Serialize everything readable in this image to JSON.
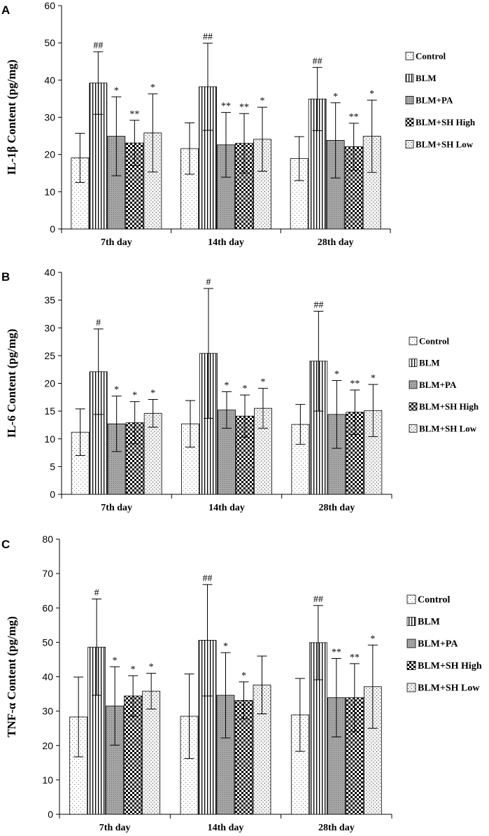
{
  "colors": {
    "axis": "#000000",
    "bar_fill": "#ffffff",
    "pattern": "#000000"
  },
  "chart_data": [
    {
      "type": "bar",
      "panel": "A",
      "ylabel": "IL-1β Content (pg/mg)",
      "ylim": [
        0,
        60
      ],
      "yticks": [
        "0",
        "10",
        "20",
        "30",
        "40",
        "50",
        "60"
      ],
      "categories": [
        "7th day",
        "14th day",
        "28th day"
      ],
      "series": [
        {
          "name": "Control",
          "pattern": "control",
          "values": [
            19.1,
            21.6,
            18.9
          ],
          "errors": [
            6.6,
            6.9,
            5.9
          ],
          "annotations": [
            "",
            "",
            ""
          ]
        },
        {
          "name": "BLM",
          "pattern": "blm",
          "values": [
            39.2,
            38.2,
            34.9
          ],
          "errors": [
            8.4,
            11.7,
            8.5
          ],
          "annotations": [
            "##",
            "##",
            "##"
          ]
        },
        {
          "name": "BLM+PA",
          "pattern": "pa",
          "values": [
            24.9,
            22.6,
            23.8
          ],
          "errors": [
            10.6,
            8.7,
            10.1
          ],
          "annotations": [
            "*",
            "**",
            "*"
          ]
        },
        {
          "name": "BLM+SH High",
          "pattern": "high",
          "values": [
            23.1,
            23.0,
            22.1
          ],
          "errors": [
            6.1,
            8.0,
            6.3
          ],
          "annotations": [
            "**",
            "**",
            "**"
          ]
        },
        {
          "name": "BLM+SH Low",
          "pattern": "low",
          "values": [
            25.8,
            24.1,
            24.9
          ],
          "errors": [
            10.5,
            8.6,
            9.7
          ],
          "annotations": [
            "*",
            "*",
            "*"
          ]
        }
      ]
    },
    {
      "type": "bar",
      "panel": "B",
      "ylabel": "IL-6 Content (pg/mg)",
      "ylim": [
        0,
        40
      ],
      "yticks": [
        "0",
        "5",
        "10",
        "15",
        "20",
        "25",
        "30",
        "35",
        "40"
      ],
      "categories": [
        "7th day",
        "14th day",
        "28th day"
      ],
      "series": [
        {
          "name": "Control",
          "pattern": "control",
          "values": [
            11.2,
            12.7,
            12.6
          ],
          "errors": [
            4.2,
            4.2,
            3.6
          ],
          "annotations": [
            "",
            "",
            ""
          ]
        },
        {
          "name": "BLM",
          "pattern": "blm",
          "values": [
            22.1,
            25.4,
            24.0
          ],
          "errors": [
            7.7,
            11.7,
            9.0
          ],
          "annotations": [
            "#",
            "#",
            "##"
          ]
        },
        {
          "name": "BLM+PA",
          "pattern": "pa",
          "values": [
            12.7,
            15.2,
            14.4
          ],
          "errors": [
            5.0,
            3.3,
            6.1
          ],
          "annotations": [
            "*",
            "*",
            "*"
          ]
        },
        {
          "name": "BLM+SH High",
          "pattern": "high",
          "values": [
            12.9,
            14.1,
            14.8
          ],
          "errors": [
            3.8,
            3.8,
            4.0
          ],
          "annotations": [
            "*",
            "*",
            "**"
          ]
        },
        {
          "name": "BLM+SH Low",
          "pattern": "low",
          "values": [
            14.6,
            15.5,
            15.1
          ],
          "errors": [
            2.5,
            3.6,
            4.7
          ],
          "annotations": [
            "*",
            "*",
            "*"
          ]
        }
      ]
    },
    {
      "type": "bar",
      "panel": "C",
      "ylabel": "TNF-α Content (pg/mg)",
      "ylim": [
        0,
        80
      ],
      "yticks": [
        "0",
        "10",
        "20",
        "30",
        "40",
        "50",
        "60",
        "70",
        "80"
      ],
      "categories": [
        "7th day",
        "14th day",
        "28th day"
      ],
      "series": [
        {
          "name": "Control",
          "pattern": "control",
          "values": [
            28.3,
            28.5,
            28.9
          ],
          "errors": [
            11.6,
            12.3,
            10.6
          ],
          "annotations": [
            "",
            "",
            ""
          ]
        },
        {
          "name": "BLM",
          "pattern": "blm",
          "values": [
            48.6,
            50.6,
            49.9
          ],
          "errors": [
            14.0,
            16.2,
            10.8
          ],
          "annotations": [
            "#",
            "##",
            "##"
          ]
        },
        {
          "name": "BLM+PA",
          "pattern": "pa",
          "values": [
            31.5,
            34.6,
            33.9
          ],
          "errors": [
            11.4,
            12.4,
            11.4
          ],
          "annotations": [
            "*",
            "*",
            "**"
          ]
        },
        {
          "name": "BLM+SH High",
          "pattern": "high",
          "values": [
            34.4,
            33.1,
            33.9
          ],
          "errors": [
            5.9,
            5.4,
            9.9
          ],
          "annotations": [
            "*",
            "*",
            "**"
          ]
        },
        {
          "name": "BLM+SH Low",
          "pattern": "low",
          "values": [
            35.8,
            37.6,
            37.1
          ],
          "errors": [
            5.2,
            8.4,
            12.1
          ],
          "annotations": [
            "*",
            "",
            "*"
          ]
        }
      ]
    }
  ]
}
